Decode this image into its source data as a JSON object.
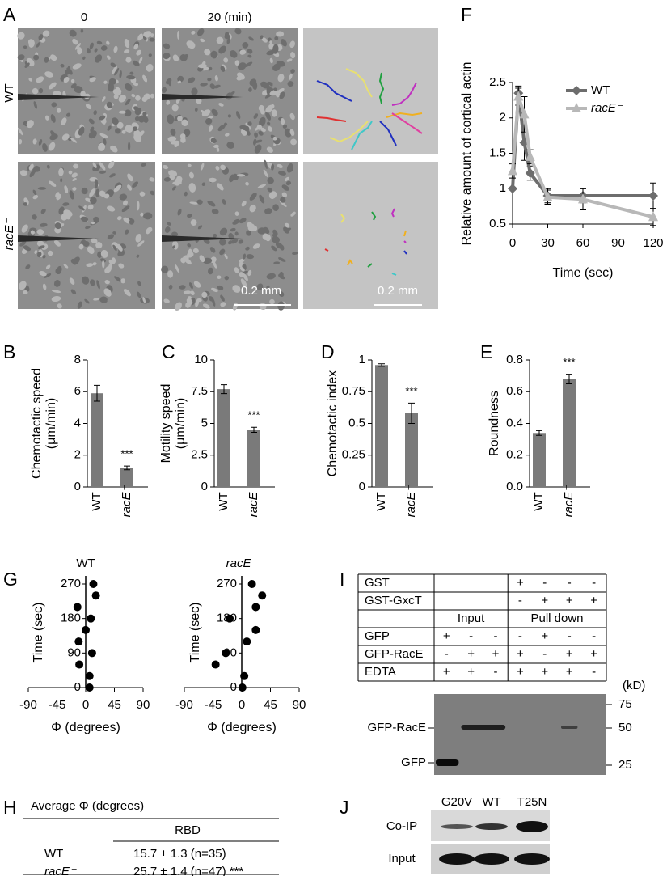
{
  "panel_labels": [
    "A",
    "B",
    "C",
    "D",
    "E",
    "F",
    "G",
    "H",
    "I",
    "J"
  ],
  "microscopy": {
    "time_labels": [
      "0",
      "20 (min)"
    ],
    "row_labels": [
      "WT",
      "racE⁻"
    ],
    "scale_bars": [
      "0.2 mm",
      "0.2 mm"
    ]
  },
  "chart_data": [
    {
      "type": "bar",
      "ylabel": [
        "Chemotactic speed",
        "(μm/min)"
      ],
      "categories": [
        "WT",
        "racE⁻"
      ],
      "values": [
        5.9,
        1.2
      ],
      "errors": [
        0.5,
        0.12
      ],
      "color": "#7a7a7a",
      "ylim": [
        0,
        8
      ],
      "yticks": [
        0,
        2,
        4,
        6,
        8
      ],
      "annotation": "***"
    },
    {
      "type": "bar",
      "ylabel": [
        "Motility speed",
        "(μm/min)"
      ],
      "categories": [
        "WT",
        "racE⁻"
      ],
      "values": [
        7.7,
        4.5
      ],
      "errors": [
        0.35,
        0.2
      ],
      "color": "#7a7a7a",
      "ylim": [
        0,
        10
      ],
      "yticks": [
        0,
        2.5,
        5,
        7.5,
        10
      ],
      "annotation": "***"
    },
    {
      "type": "bar",
      "ylabel": [
        "Chemotactic index"
      ],
      "categories": [
        "WT",
        "racE⁻"
      ],
      "values": [
        0.96,
        0.58
      ],
      "errors": [
        0.01,
        0.08
      ],
      "color": "#7a7a7a",
      "ylim": [
        0,
        1
      ],
      "yticks": [
        0,
        0.25,
        0.5,
        0.75,
        1
      ],
      "annotation": "***"
    },
    {
      "type": "bar",
      "ylabel": [
        "Roundness"
      ],
      "categories": [
        "WT",
        "racE⁻"
      ],
      "values": [
        0.34,
        0.68
      ],
      "errors": [
        0.015,
        0.03
      ],
      "color": "#7a7a7a",
      "ylim": [
        0,
        0.8
      ],
      "yticks": [
        {
          "value": 0,
          "label": "0.0"
        },
        0.2,
        0.4,
        0.6,
        0.8
      ],
      "annotation": "***"
    },
    {
      "type": "line",
      "ylabel": "Relative amount of cortical actin",
      "xlabel": "Time (sec)",
      "x": [
        0,
        5,
        10,
        15,
        30,
        60,
        120
      ],
      "series": [
        {
          "name": "WT",
          "color": "#6d6d6d",
          "marker": "diamond",
          "values": [
            1.0,
            2.35,
            1.65,
            1.22,
            0.9,
            0.9,
            0.9
          ],
          "errors": [
            0.02,
            0.1,
            0.25,
            0.1,
            0.1,
            0.1,
            0.18
          ]
        },
        {
          "name": "racE⁻",
          "color": "#b8b8b8",
          "marker": "triangle",
          "values": [
            1.25,
            2.3,
            2.05,
            1.45,
            0.88,
            0.85,
            0.6
          ],
          "errors": [
            0.1,
            0.12,
            0.25,
            0.1,
            0.1,
            0.15,
            0.12
          ]
        }
      ],
      "xlim": [
        0,
        120
      ],
      "xticks": [
        0,
        30,
        60,
        90,
        120
      ],
      "ylim": [
        0.5,
        2.5
      ],
      "yticks": [
        0.5,
        1,
        1.5,
        2,
        2.5
      ],
      "legend": "upper right"
    },
    {
      "type": "scatter",
      "title": "WT",
      "xlabel": "Φ (degrees)",
      "ylabel": "Time (sec)",
      "color": "#000000",
      "x": [
        6,
        6,
        -10,
        10,
        -11,
        0,
        8,
        -13,
        16,
        12
      ],
      "y": [
        0,
        30,
        60,
        90,
        120,
        150,
        180,
        210,
        240,
        270
      ],
      "xlim": [
        -90,
        90
      ],
      "xticks": [
        -90,
        -45,
        0,
        45,
        90
      ],
      "ylim": [
        0,
        270
      ],
      "yticks": [
        0,
        90,
        180,
        270
      ]
    },
    {
      "type": "scatter",
      "title": "racE⁻",
      "xlabel": "Φ (degrees)",
      "ylabel": "Time (sec)",
      "color": "#000000",
      "x": [
        1,
        4,
        -41,
        -25,
        8,
        22,
        -19,
        22,
        32,
        16
      ],
      "y": [
        0,
        30,
        60,
        90,
        120,
        150,
        180,
        210,
        240,
        270
      ],
      "xlim": [
        -90,
        90
      ],
      "xticks": [
        -90,
        -45,
        0,
        45,
        90
      ],
      "ylim": [
        0,
        270
      ],
      "yticks": [
        0,
        90,
        180,
        270
      ]
    }
  ],
  "table_h": {
    "title": "Average Φ (degrees)",
    "header": "RBD",
    "rows": [
      [
        "WT",
        "15.7 ± 1.3 (n=35)"
      ],
      [
        "racE⁻",
        "25.7 ± 1.4 (n=47) ***"
      ]
    ]
  },
  "table_i": {
    "rows": [
      {
        "label": "GST",
        "cells": [
          "",
          "",
          "",
          "+",
          "-",
          "-",
          "-"
        ]
      },
      {
        "label": "GST-GxcT",
        "cells": [
          "",
          "",
          "",
          "-",
          "+",
          "+",
          "+"
        ]
      },
      {
        "label": "GFP",
        "cells": [
          "+",
          "-",
          "-",
          "-",
          "+",
          "-",
          "-"
        ]
      },
      {
        "label": "GFP-RacE",
        "cells": [
          "-",
          "+",
          "+",
          "+",
          "-",
          "+",
          "+"
        ]
      },
      {
        "label": "EDTA",
        "cells": [
          "+",
          "+",
          "-",
          "+",
          "+",
          "+",
          "-"
        ]
      }
    ],
    "groups": [
      "Input",
      "Pull down"
    ],
    "blot_unit": "(kD)",
    "markers": [
      75,
      50,
      25
    ],
    "bands": [
      "GFP-RacE",
      "GFP"
    ]
  },
  "blot_j": {
    "lanes": [
      "G20V",
      "WT",
      "T25N"
    ],
    "rows": [
      "Co-IP",
      "Input"
    ]
  }
}
